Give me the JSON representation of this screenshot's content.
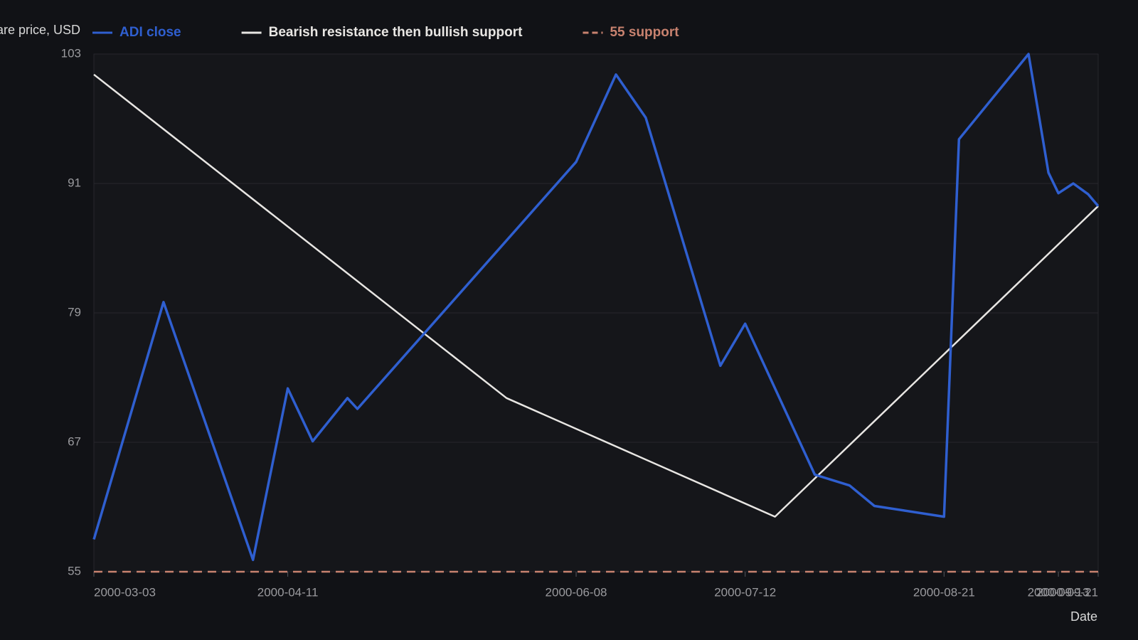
{
  "chart_data": {
    "type": "line",
    "y_label": "Share price, USD",
    "x_label": "Date",
    "xlim": [
      "2000-03-03",
      "2000-09-21"
    ],
    "xticks": [
      "2000-03-03",
      "2000-04-11",
      "2000-06-08",
      "2000-07-12",
      "2000-08-21",
      "2000-09-13",
      "2000-09-21"
    ],
    "ylim": [
      55,
      103
    ],
    "yticks": [
      55,
      67,
      79,
      91,
      103
    ],
    "grid": true,
    "series": [
      {
        "name": "ADI close",
        "color": "#2f5fd0",
        "dash": false,
        "x": [
          "2000-03-03",
          "2000-03-17",
          "2000-04-04",
          "2000-04-11",
          "2000-04-16",
          "2000-04-23",
          "2000-04-25",
          "2000-06-08",
          "2000-06-16",
          "2000-06-22",
          "2000-07-07",
          "2000-07-12",
          "2000-07-26",
          "2000-08-02",
          "2000-08-07",
          "2000-08-21",
          "2000-08-24",
          "2000-09-07",
          "2000-09-11",
          "2000-09-13",
          "2000-09-16",
          "2000-09-19",
          "2000-09-21"
        ],
        "values": [
          58.0,
          80.0,
          56.1,
          72.0,
          67.1,
          71.1,
          70.1,
          93.0,
          101.1,
          97.1,
          74.1,
          78.0,
          64.0,
          63.0,
          61.1,
          60.1,
          95.1,
          103.0,
          92.0,
          90.1,
          91.0,
          90.0,
          88.9
        ]
      },
      {
        "name": "Bearish resistance then bullish support",
        "color": "#e8e6e3",
        "dash": false,
        "x": [
          "2000-03-03",
          "2000-05-25",
          "2000-07-18",
          "2000-09-21"
        ],
        "values": [
          101.1,
          71.1,
          60.1,
          88.9
        ]
      },
      {
        "name": "55 support",
        "color": "#c8826f",
        "dash": true,
        "x": [
          "2000-03-03",
          "2000-09-21"
        ],
        "values": [
          55,
          55
        ]
      }
    ]
  }
}
